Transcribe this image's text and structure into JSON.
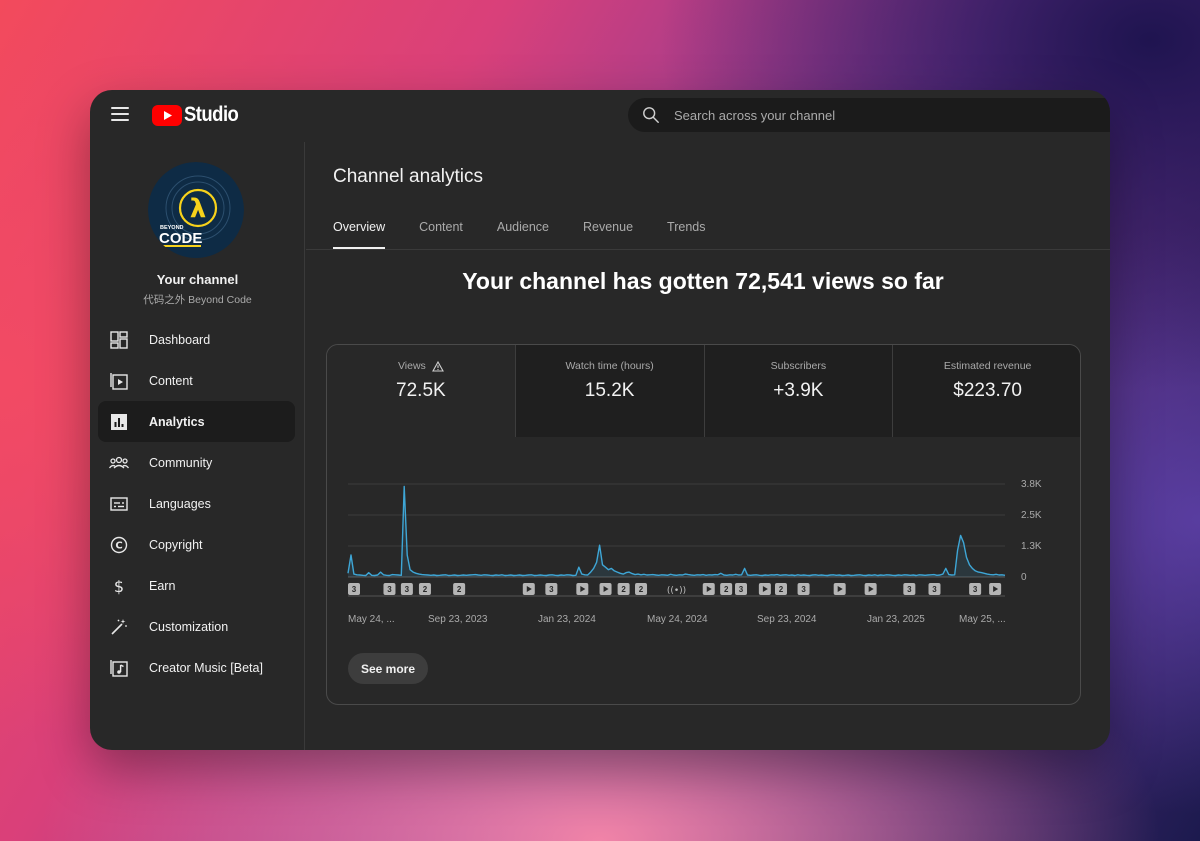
{
  "app": {
    "logo_text": "Studio",
    "brand_color": "#ff0000",
    "search_placeholder": "Search across your channel"
  },
  "channel": {
    "title": "Your channel",
    "subtitle": "代码之外 Beyond Code",
    "avatar_text_small": "BEYOND",
    "avatar_text_big": "CODE",
    "avatar_symbol": "λ",
    "avatar_colors": {
      "bg": "#0e2b45",
      "accent": "#f7d21b"
    }
  },
  "sidebar": {
    "items": [
      {
        "label": "Dashboard",
        "icon": "dashboard-icon",
        "active": false
      },
      {
        "label": "Content",
        "icon": "content-icon",
        "active": false
      },
      {
        "label": "Analytics",
        "icon": "analytics-icon",
        "active": true
      },
      {
        "label": "Community",
        "icon": "community-icon",
        "active": false
      },
      {
        "label": "Languages",
        "icon": "languages-icon",
        "active": false
      },
      {
        "label": "Copyright",
        "icon": "copyright-icon",
        "active": false
      },
      {
        "label": "Earn",
        "icon": "earn-icon",
        "active": false
      },
      {
        "label": "Customization",
        "icon": "customization-icon",
        "active": false
      },
      {
        "label": "Creator Music [Beta]",
        "icon": "creator-music-icon",
        "active": false
      }
    ]
  },
  "main": {
    "title": "Channel analytics",
    "tabs": [
      {
        "label": "Overview",
        "active": true
      },
      {
        "label": "Content",
        "active": false
      },
      {
        "label": "Audience",
        "active": false
      },
      {
        "label": "Revenue",
        "active": false
      },
      {
        "label": "Trends",
        "active": false
      }
    ],
    "headline": "Your channel has gotten 72,541 views so far",
    "metrics": [
      {
        "label": "Views",
        "value": "72.5K",
        "warning": true,
        "selected": true
      },
      {
        "label": "Watch time (hours)",
        "value": "15.2K",
        "warning": false,
        "selected": false
      },
      {
        "label": "Subscribers",
        "value": "+3.9K",
        "warning": false,
        "selected": false
      },
      {
        "label": "Estimated revenue",
        "value": "$223.70",
        "warning": false,
        "selected": false
      }
    ],
    "see_more_label": "See more"
  },
  "chart_data": {
    "type": "line",
    "series": [
      {
        "color": "#3ea6d6",
        "values": [
          150,
          900,
          120,
          90,
          80,
          70,
          60,
          180,
          70,
          60,
          80,
          200,
          90,
          70,
          60,
          100,
          90,
          80,
          70,
          3700,
          900,
          300,
          200,
          150,
          120,
          100,
          90,
          80,
          70,
          80,
          60,
          70,
          80,
          90,
          60,
          70,
          80,
          60,
          70,
          80,
          70,
          80,
          90,
          100,
          80,
          70,
          90,
          80,
          70,
          60,
          80,
          70,
          90,
          60,
          70,
          80,
          60,
          70,
          80,
          60,
          70,
          80,
          90,
          60,
          70,
          80,
          70,
          60,
          80,
          90,
          70,
          60,
          80,
          70,
          90,
          80,
          60,
          70,
          400,
          120,
          90,
          80,
          200,
          350,
          600,
          1300,
          500,
          400,
          300,
          350,
          250,
          200,
          150,
          120,
          180,
          200,
          140,
          100,
          120,
          90,
          110,
          80,
          90,
          100,
          80,
          70,
          90,
          80,
          70,
          110,
          80,
          70,
          90,
          80,
          120,
          100,
          80,
          70,
          90,
          80,
          100,
          70,
          90,
          80,
          100,
          90,
          150,
          80,
          70,
          90,
          80,
          110,
          80,
          90,
          350,
          80,
          70,
          80,
          90,
          70,
          60,
          80,
          70,
          90,
          80,
          100,
          70,
          80,
          90,
          70,
          80,
          60,
          90,
          70,
          80,
          70,
          60,
          80,
          90,
          70,
          80,
          70,
          60,
          80,
          90,
          70,
          80,
          60,
          70,
          80,
          60,
          70,
          80,
          90,
          70,
          60,
          80,
          70,
          90,
          60,
          80,
          70,
          90,
          80,
          70,
          60,
          80,
          70,
          90,
          80,
          70,
          80,
          60,
          90,
          80,
          70,
          80,
          90,
          100,
          70,
          80,
          120,
          350,
          100,
          80,
          90,
          1100,
          1700,
          1400,
          800,
          500,
          350,
          250,
          200,
          180,
          150,
          120,
          100,
          90,
          110,
          80,
          90,
          70
        ]
      }
    ],
    "x_tick_labels": [
      "May 24, ...",
      "Sep 23, 2023",
      "Jan 23, 2024",
      "May 24, 2024",
      "Sep 23, 2024",
      "Jan 23, 2025",
      "May 25, ..."
    ],
    "y_tick_labels": [
      "3.8K",
      "2.5K",
      "1.3K",
      "0"
    ],
    "ylim": [
      0,
      3800
    ],
    "grid": true,
    "markers": [
      {
        "pos": 0.0,
        "kind": "count",
        "label": "3"
      },
      {
        "pos": 0.055,
        "kind": "count",
        "label": "3"
      },
      {
        "pos": 0.082,
        "kind": "count",
        "label": "3"
      },
      {
        "pos": 0.11,
        "kind": "count",
        "label": "2"
      },
      {
        "pos": 0.163,
        "kind": "count",
        "label": "2"
      },
      {
        "pos": 0.271,
        "kind": "video",
        "label": ""
      },
      {
        "pos": 0.306,
        "kind": "count",
        "label": "3"
      },
      {
        "pos": 0.354,
        "kind": "video",
        "label": ""
      },
      {
        "pos": 0.39,
        "kind": "video",
        "label": ""
      },
      {
        "pos": 0.418,
        "kind": "count",
        "label": "2"
      },
      {
        "pos": 0.445,
        "kind": "count",
        "label": "2"
      },
      {
        "pos": 0.5,
        "kind": "live",
        "label": ""
      },
      {
        "pos": 0.55,
        "kind": "video",
        "label": ""
      },
      {
        "pos": 0.577,
        "kind": "count",
        "label": "2"
      },
      {
        "pos": 0.6,
        "kind": "count",
        "label": "3"
      },
      {
        "pos": 0.637,
        "kind": "video",
        "label": ""
      },
      {
        "pos": 0.662,
        "kind": "count",
        "label": "2"
      },
      {
        "pos": 0.697,
        "kind": "count",
        "label": "3"
      },
      {
        "pos": 0.753,
        "kind": "video",
        "label": ""
      },
      {
        "pos": 0.801,
        "kind": "video",
        "label": ""
      },
      {
        "pos": 0.861,
        "kind": "count",
        "label": "3"
      },
      {
        "pos": 0.9,
        "kind": "count",
        "label": "3"
      },
      {
        "pos": 0.963,
        "kind": "count",
        "label": "3"
      },
      {
        "pos": 0.994,
        "kind": "video",
        "label": ""
      }
    ]
  }
}
